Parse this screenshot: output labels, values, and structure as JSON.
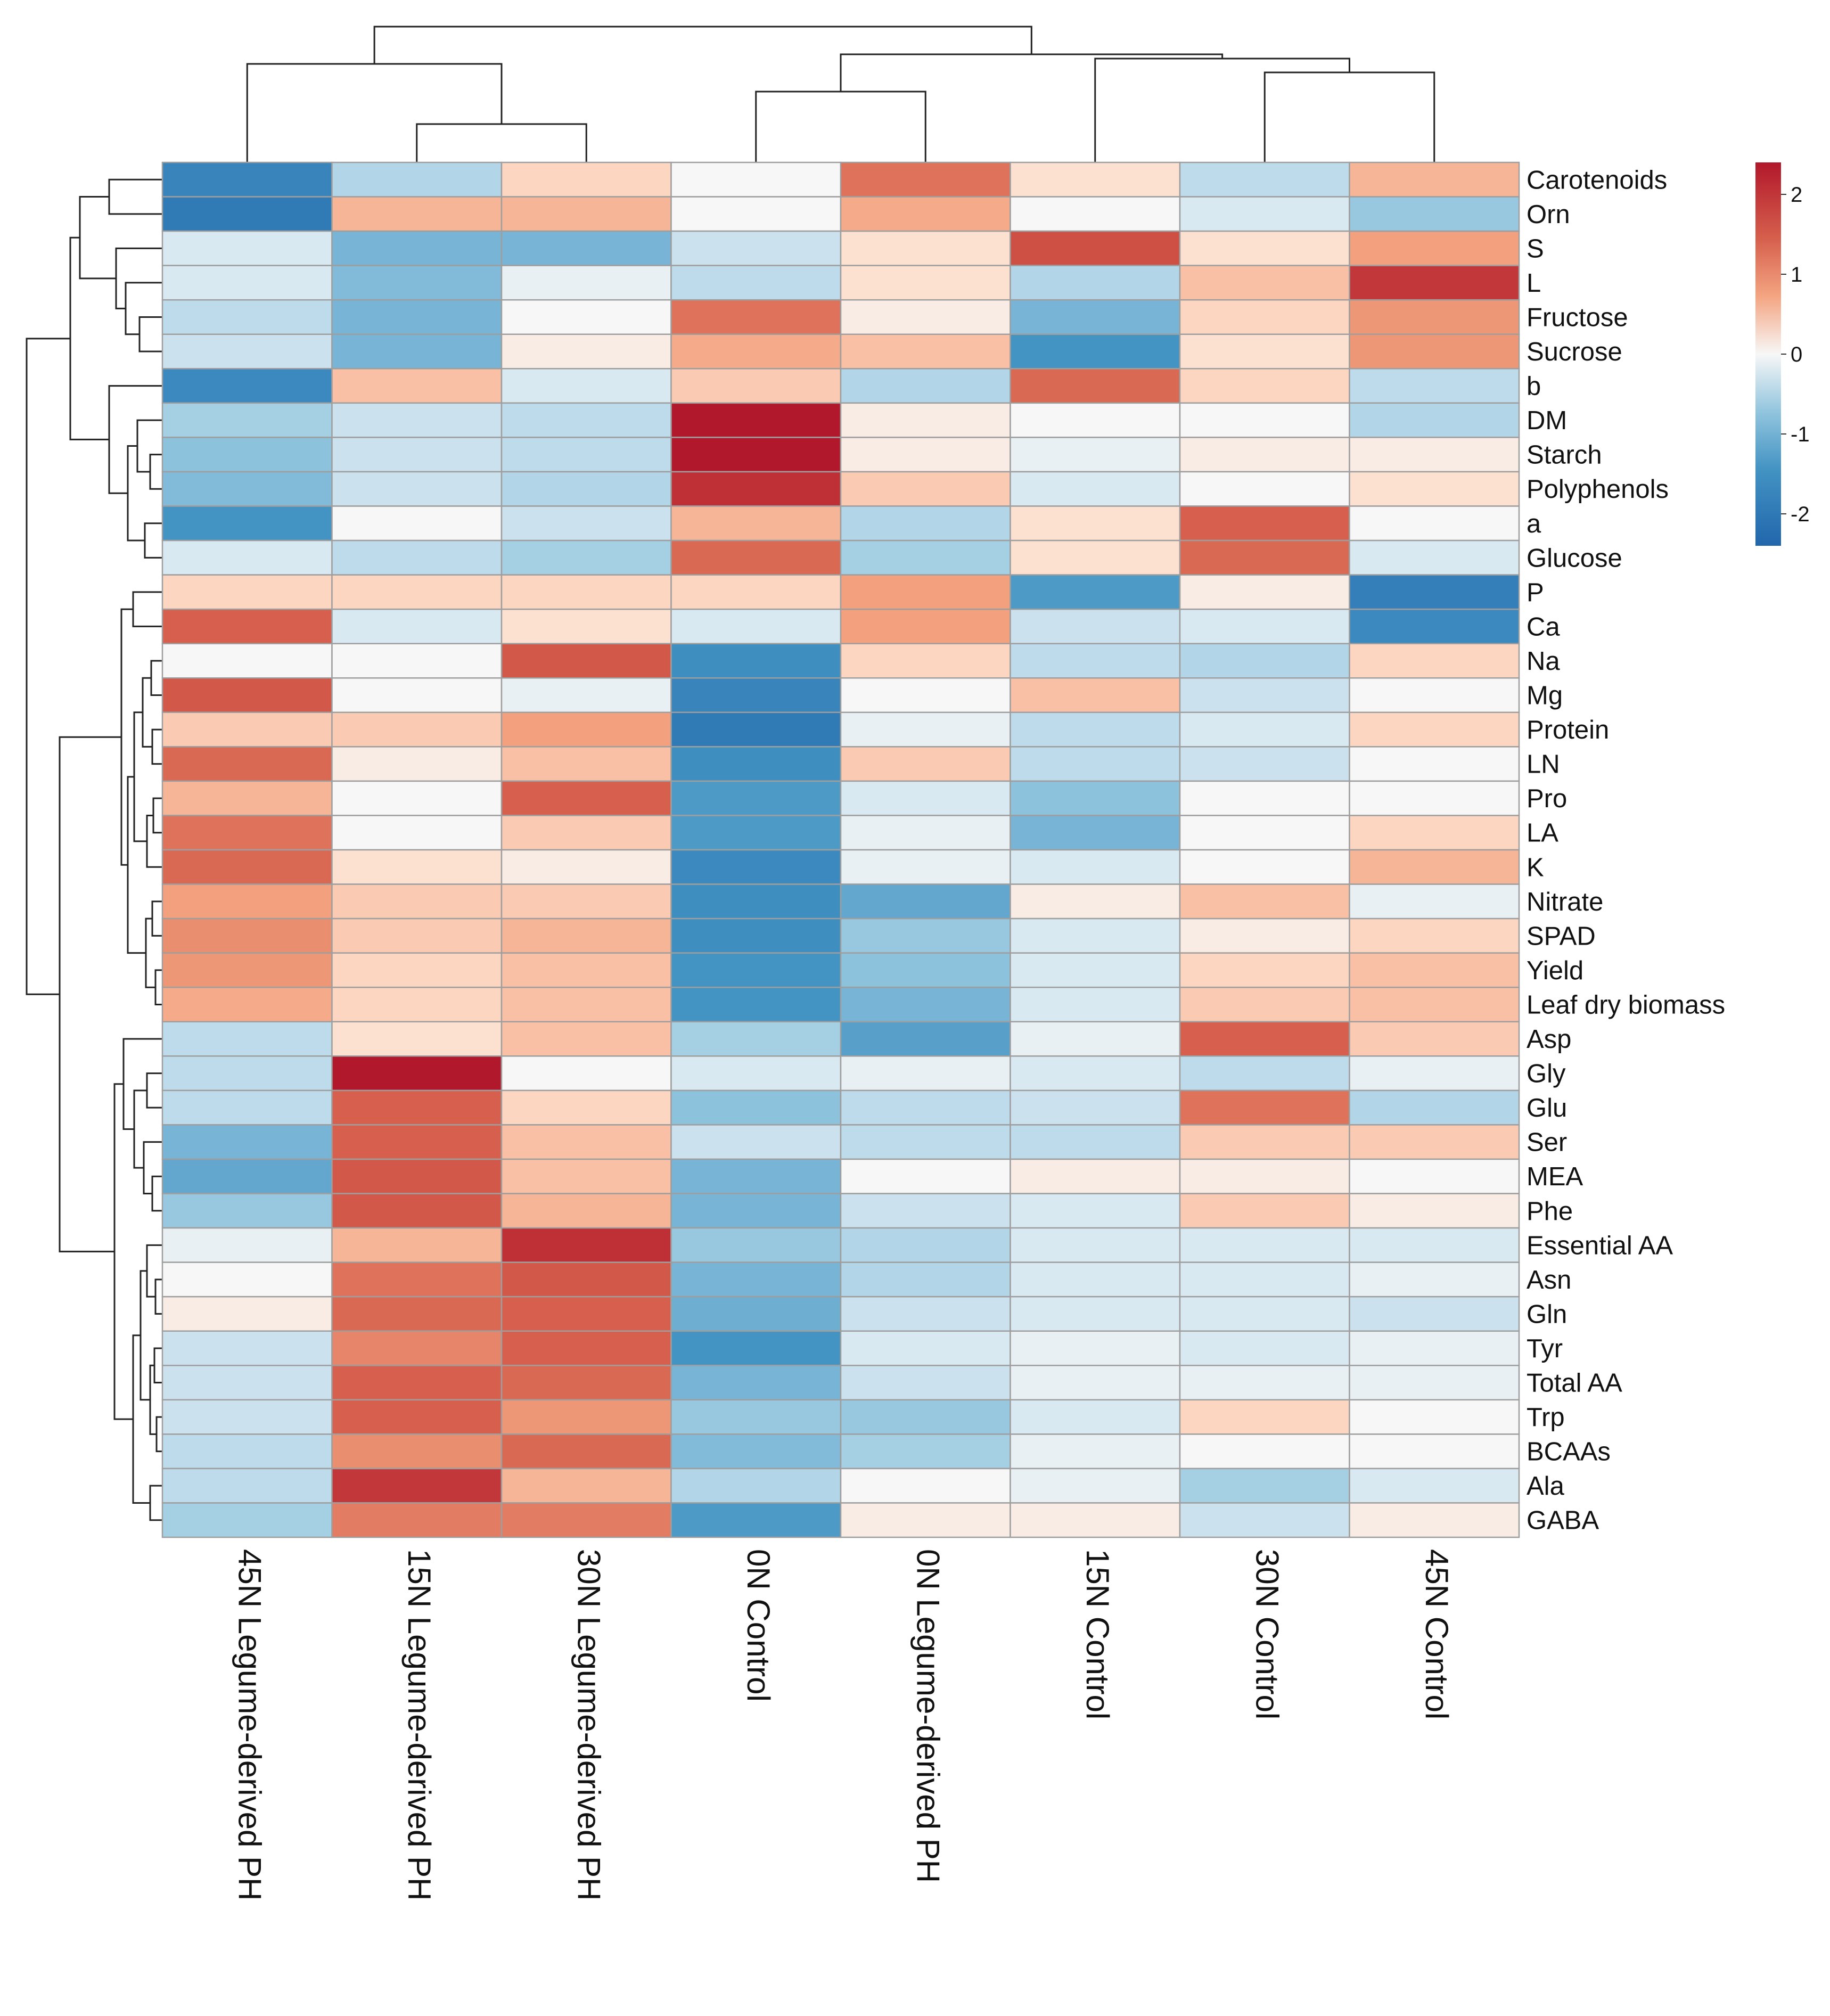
{
  "chart_data": {
    "type": "heatmap",
    "title": "",
    "columns": [
      "45N Legume-derived PH",
      "15N Legume-derived PH",
      "30N Legume-derived PH",
      "0N Control",
      "0N Legume-derived PH",
      "15N Control",
      "30N Control",
      "45N Control"
    ],
    "rows": [
      "Carotenoids",
      "Orn",
      "S",
      "L",
      "Fructose",
      "Sucrose",
      "b",
      "DM",
      "Starch",
      "Polyphenols",
      "a",
      "Glucose",
      "P",
      "Ca",
      "Na",
      "Mg",
      "Protein",
      "LN",
      "Pro",
      "LA",
      "K",
      "Nitrate",
      "SPAD",
      "Yield",
      "Leaf dry biomass",
      "Asp",
      "Gly",
      "Glu",
      "Ser",
      "MEA",
      "Phe",
      "Essential AA",
      "Asn",
      "Gln",
      "Tyr",
      "Total AA",
      "Trp",
      "BCAAs",
      "Ala",
      "GABA"
    ],
    "values": [
      [
        -1.8,
        -0.5,
        0.3,
        0.0,
        1.3,
        0.2,
        -0.4,
        0.6
      ],
      [
        -2.0,
        0.6,
        0.6,
        0.0,
        0.7,
        0.0,
        -0.2,
        -0.7
      ],
      [
        -0.2,
        -1.0,
        -1.0,
        -0.3,
        0.2,
        1.7,
        0.2,
        0.8
      ],
      [
        -0.2,
        -0.9,
        -0.1,
        -0.4,
        0.2,
        -0.5,
        0.5,
        2.0
      ],
      [
        -0.4,
        -1.0,
        0.0,
        1.3,
        0.1,
        -1.0,
        0.3,
        0.9
      ],
      [
        -0.3,
        -1.0,
        0.1,
        0.7,
        0.5,
        -1.5,
        0.2,
        0.9
      ],
      [
        -1.7,
        0.5,
        -0.2,
        0.4,
        -0.5,
        1.4,
        0.3,
        -0.4
      ],
      [
        -0.6,
        -0.3,
        -0.4,
        2.4,
        0.1,
        0.0,
        0.0,
        -0.5
      ],
      [
        -0.8,
        -0.3,
        -0.4,
        2.4,
        0.1,
        -0.1,
        0.1,
        0.1
      ],
      [
        -0.9,
        -0.3,
        -0.5,
        2.1,
        0.4,
        -0.2,
        0.0,
        0.2
      ],
      [
        -1.5,
        0.0,
        -0.3,
        0.6,
        -0.5,
        0.2,
        1.5,
        0.0
      ],
      [
        -0.2,
        -0.4,
        -0.6,
        1.4,
        -0.6,
        0.2,
        1.4,
        -0.2
      ],
      [
        0.3,
        0.3,
        0.3,
        0.3,
        0.8,
        -1.4,
        0.1,
        -1.9
      ],
      [
        1.5,
        -0.2,
        0.2,
        -0.2,
        0.8,
        -0.3,
        -0.2,
        -1.7
      ],
      [
        0.0,
        0.0,
        1.6,
        -1.6,
        0.3,
        -0.4,
        -0.5,
        0.3
      ],
      [
        1.6,
        0.0,
        -0.1,
        -1.8,
        0.0,
        0.5,
        -0.3,
        0.0
      ],
      [
        0.4,
        0.4,
        0.8,
        -2.0,
        -0.1,
        -0.4,
        -0.2,
        0.3
      ],
      [
        1.4,
        0.1,
        0.5,
        -1.6,
        0.4,
        -0.4,
        -0.3,
        0.0
      ],
      [
        0.6,
        0.0,
        1.5,
        -1.4,
        -0.2,
        -0.8,
        0.0,
        0.0
      ],
      [
        1.3,
        0.0,
        0.4,
        -1.4,
        -0.1,
        -1.0,
        0.0,
        0.3
      ],
      [
        1.4,
        0.2,
        0.1,
        -1.7,
        -0.1,
        -0.2,
        0.0,
        0.6
      ],
      [
        0.8,
        0.4,
        0.4,
        -1.6,
        -1.2,
        0.1,
        0.5,
        -0.1
      ],
      [
        1.0,
        0.4,
        0.6,
        -1.6,
        -0.7,
        -0.2,
        0.1,
        0.3
      ],
      [
        0.9,
        0.3,
        0.5,
        -1.5,
        -0.8,
        -0.2,
        0.3,
        0.5
      ],
      [
        0.7,
        0.3,
        0.5,
        -1.5,
        -1.0,
        -0.2,
        0.4,
        0.5
      ],
      [
        -0.4,
        0.2,
        0.5,
        -0.6,
        -1.3,
        -0.1,
        1.5,
        0.4
      ],
      [
        -0.4,
        2.4,
        0.0,
        -0.2,
        -0.1,
        -0.2,
        -0.4,
        -0.1
      ],
      [
        -0.4,
        1.5,
        0.3,
        -0.8,
        -0.4,
        -0.3,
        1.3,
        -0.5
      ],
      [
        -1.0,
        1.5,
        0.5,
        -0.3,
        -0.4,
        -0.4,
        0.4,
        0.4
      ],
      [
        -1.2,
        1.6,
        0.5,
        -1.0,
        0.0,
        0.1,
        0.1,
        0.0
      ],
      [
        -0.7,
        1.6,
        0.6,
        -1.0,
        -0.3,
        -0.2,
        0.4,
        0.1
      ],
      [
        -0.1,
        0.6,
        2.1,
        -0.7,
        -0.5,
        -0.2,
        -0.2,
        -0.2
      ],
      [
        0.0,
        1.3,
        1.6,
        -1.0,
        -0.5,
        -0.2,
        -0.2,
        -0.1
      ],
      [
        0.1,
        1.4,
        1.5,
        -1.1,
        -0.3,
        -0.2,
        -0.2,
        -0.3
      ],
      [
        -0.3,
        1.1,
        1.5,
        -1.5,
        -0.2,
        -0.1,
        -0.2,
        -0.1
      ],
      [
        -0.3,
        1.5,
        1.4,
        -1.0,
        -0.3,
        -0.1,
        -0.1,
        -0.1
      ],
      [
        -0.3,
        1.5,
        0.9,
        -0.7,
        -0.7,
        -0.2,
        0.3,
        0.0
      ],
      [
        -0.4,
        1.0,
        1.4,
        -0.9,
        -0.6,
        -0.1,
        0.0,
        0.0
      ],
      [
        -0.4,
        2.0,
        0.6,
        -0.5,
        0.0,
        -0.1,
        -0.6,
        -0.2
      ],
      [
        -0.6,
        1.2,
        1.2,
        -1.4,
        0.1,
        0.1,
        -0.3,
        0.1
      ]
    ],
    "legend": {
      "min": -2.4,
      "max": 2.4,
      "ticks": [
        2,
        1,
        0,
        -1,
        -2
      ],
      "tick_labels": [
        "2",
        "1",
        "0",
        "-1",
        "-2"
      ],
      "colors": {
        "low": "#2166ac",
        "mid": "#f7f7f7",
        "high": "#b2182b"
      }
    },
    "grid": true,
    "column_dendrogram": "left group: 45N Legume-derived PH joined with (15N Legume-derived PH, 30N Legume-derived PH); right group: (0N Control, 0N Legume-derived PH) joined with (15N Control, (30N Control, 45N Control))",
    "row_dendrogram": "hierarchical clustering of 40 traits; top block Carotenoids–Glucose, middle block P–Leaf dry biomass, bottom block Asp–GABA"
  }
}
